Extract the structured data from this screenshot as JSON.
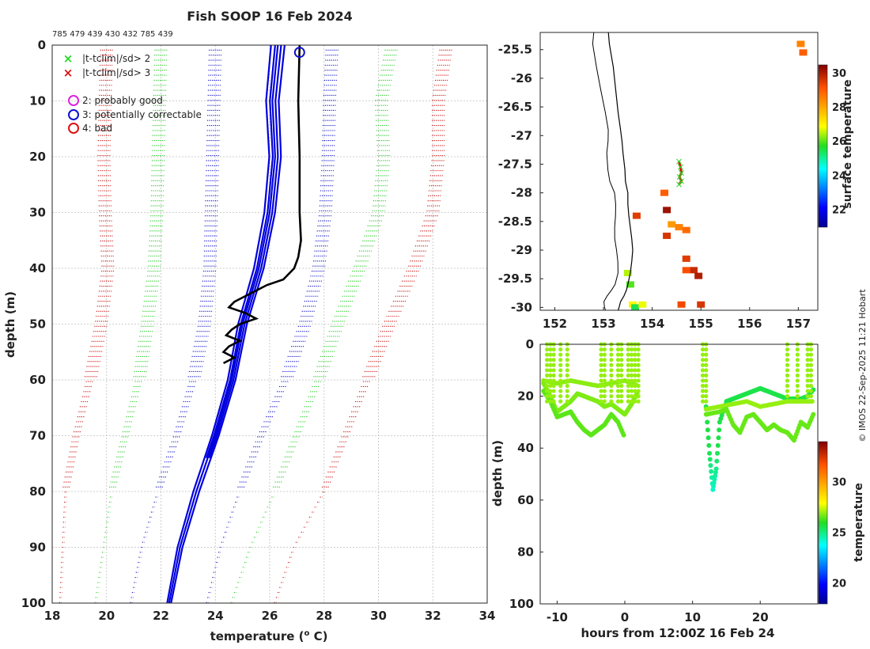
{
  "title": "Fish SOOP 16 Feb 2024",
  "top_counts": "785 479 439 430 432 785 439",
  "copyright": "© IMOS 22-Sep-2025 11:21 Hobart",
  "chart_data": [
    {
      "id": "profile",
      "type": "line",
      "xlabel_main": "temperature (",
      "xlabel_sup": "o",
      "xlabel_end": " C)",
      "ylabel": "depth (m)",
      "xlim": [
        18,
        34
      ],
      "ylim": [
        0,
        100
      ],
      "xticks": [
        "18",
        "20",
        "22",
        "24",
        "26",
        "28",
        "30",
        "32",
        "34"
      ],
      "yticks": [
        "0",
        "10",
        "20",
        "30",
        "40",
        "50",
        "60",
        "70",
        "80",
        "90",
        "100"
      ],
      "legend": {
        "x2": "|t-tclim|/sd> 2",
        "x3": "|t-tclim|/sd> 3",
        "q2": "2: probably good",
        "q3": "3: potentially correctable",
        "q4": "4: bad"
      },
      "legend_colors": {
        "x2": "#22dd22",
        "x3": "#dd1111",
        "q2": "#dd22dd",
        "q3": "#1111cc",
        "q4": "#dd1111"
      },
      "climatology_series": [
        {
          "name": "-3sd",
          "color": "#cc1111",
          "depth": [
            0,
            10,
            20,
            30,
            40,
            50,
            60,
            70,
            80,
            90,
            100
          ],
          "temp": [
            20.0,
            19.95,
            19.9,
            19.95,
            20.05,
            19.8,
            19.4,
            18.9,
            18.5,
            18.4,
            18.3
          ]
        },
        {
          "name": "-2sd",
          "color": "#22cc22",
          "depth": [
            0,
            10,
            20,
            30,
            40,
            50,
            60,
            70,
            80,
            90,
            100
          ],
          "temp": [
            22.0,
            21.95,
            21.9,
            21.85,
            21.75,
            21.5,
            21.2,
            20.7,
            20.2,
            19.9,
            19.6
          ]
        },
        {
          "name": "-1sd",
          "color": "#1111cc",
          "depth": [
            0,
            10,
            20,
            30,
            40,
            50,
            60,
            70,
            80,
            90,
            100
          ],
          "temp": [
            24.0,
            23.95,
            23.9,
            23.85,
            23.8,
            23.6,
            23.2,
            22.6,
            21.9,
            21.3,
            20.9
          ]
        },
        {
          "name": "+1sd",
          "color": "#1111cc",
          "depth": [
            0,
            10,
            20,
            30,
            40,
            50,
            60,
            70,
            80,
            90,
            100
          ],
          "temp": [
            28.3,
            28.2,
            28.15,
            28.05,
            27.8,
            27.3,
            26.6,
            25.7,
            24.9,
            24.2,
            23.7
          ]
        },
        {
          "name": "+2sd",
          "color": "#22cc22",
          "depth": [
            0,
            10,
            20,
            30,
            40,
            50,
            60,
            70,
            80,
            90,
            100
          ],
          "temp": [
            30.5,
            30.1,
            30.2,
            30.0,
            29.3,
            28.5,
            27.8,
            27.0,
            26.2,
            25.3,
            24.6
          ]
        },
        {
          "name": "+3sd",
          "color": "#cc1111",
          "depth": [
            0,
            10,
            20,
            30,
            40,
            50,
            60,
            70,
            80,
            90,
            100
          ],
          "temp": [
            32.5,
            32.2,
            32.2,
            32.0,
            31.3,
            30.4,
            29.6,
            28.8,
            28.0,
            26.9,
            26.2
          ]
        }
      ],
      "mean_profiles": {
        "color": "#0000dd",
        "depth": [
          0,
          10,
          20,
          30,
          40,
          50,
          60,
          70,
          80,
          90,
          100
        ],
        "temp": [
          26.3,
          26.1,
          26.2,
          26.0,
          25.6,
          25.0,
          24.6,
          24.0,
          23.3,
          22.7,
          22.3
        ]
      },
      "observed_profile": {
        "color": "#000000",
        "depth": [
          0,
          10,
          20,
          30,
          35,
          38,
          40,
          42,
          43,
          44,
          45,
          46,
          47,
          48,
          49,
          50,
          51,
          52,
          53,
          54,
          55,
          56,
          57
        ],
        "temp": [
          27.1,
          27.05,
          27.1,
          27.1,
          27.15,
          27.05,
          26.9,
          26.5,
          25.9,
          25.5,
          25.1,
          24.7,
          24.5,
          25.1,
          25.5,
          24.9,
          24.6,
          24.4,
          24.9,
          24.5,
          24.3,
          24.7,
          24.3
        ]
      },
      "flag_marker": {
        "temp": 27.1,
        "depth": 1.3,
        "color": "#1111cc"
      }
    },
    {
      "id": "map",
      "type": "scatter",
      "xlim": [
        151.7,
        157.4
      ],
      "ylim": [
        -30.05,
        -25.2
      ],
      "xticks": [
        "152",
        "153",
        "154",
        "155",
        "156",
        "157"
      ],
      "yticks": [
        "-25.5",
        "-26",
        "-26.5",
        "-27",
        "-27.5",
        "-28",
        "-28.5",
        "-29",
        "-29.5",
        "-30"
      ],
      "colorbar_label": "surface temperature",
      "colorbar_ticks": [
        "22",
        "24",
        "26",
        "28",
        "30"
      ],
      "colorbar_range": [
        21,
        30.5
      ],
      "coast_lon": [
        153.1,
        153.12,
        153.2,
        153.25,
        153.3,
        153.35,
        153.38,
        153.4,
        153.44,
        153.45,
        153.5,
        153.5,
        153.52,
        153.55,
        153.58,
        153.6,
        153.58,
        153.55,
        153.5,
        153.47,
        153.42,
        153.35,
        153.32,
        153.3
      ],
      "coast_lat": [
        -25.2,
        -25.4,
        -25.8,
        -26.2,
        -26.6,
        -26.9,
        -27.1,
        -27.3,
        -27.6,
        -27.8,
        -28.0,
        -28.2,
        -28.4,
        -28.6,
        -28.8,
        -29.0,
        -29.2,
        -29.4,
        -29.6,
        -29.7,
        -29.8,
        -29.9,
        -30.0,
        -30.05
      ],
      "ship_track": {
        "lon": [
          154.55,
          154.58,
          154.6,
          154.56,
          154.6,
          154.55
        ],
        "lat": [
          -27.45,
          -27.55,
          -27.65,
          -27.72,
          -27.8,
          -27.85
        ],
        "color": "#dd1111",
        "marker_color": "#22dd22"
      },
      "sst_cells": [
        {
          "lon": 154.4,
          "lat": -28.55,
          "t": 28.2
        },
        {
          "lon": 154.55,
          "lat": -28.6,
          "t": 28.5
        },
        {
          "lon": 154.7,
          "lat": -28.65,
          "t": 28.8
        },
        {
          "lon": 154.7,
          "lat": -29.15,
          "t": 29.5
        },
        {
          "lon": 154.85,
          "lat": -29.35,
          "t": 29.8
        },
        {
          "lon": 154.7,
          "lat": -29.35,
          "t": 29.2
        },
        {
          "lon": 154.95,
          "lat": -29.45,
          "t": 30.0
        },
        {
          "lon": 155.0,
          "lat": -29.95,
          "t": 29.6
        },
        {
          "lon": 154.3,
          "lat": -28.3,
          "t": 30.2
        },
        {
          "lon": 154.25,
          "lat": -28.0,
          "t": 29.0
        },
        {
          "lon": 153.5,
          "lat": -29.4,
          "t": 26.5
        },
        {
          "lon": 153.55,
          "lat": -29.6,
          "t": 26.0
        },
        {
          "lon": 153.6,
          "lat": -29.95,
          "t": 27.0
        },
        {
          "lon": 153.65,
          "lat": -30.0,
          "t": 25.5
        },
        {
          "lon": 157.05,
          "lat": -25.4,
          "t": 28.5
        },
        {
          "lon": 157.1,
          "lat": -25.55,
          "t": 29.0
        },
        {
          "lon": 154.6,
          "lat": -29.95,
          "t": 29.3
        },
        {
          "lon": 153.8,
          "lat": -29.95,
          "t": 26.8
        },
        {
          "lon": 154.3,
          "lat": -28.75,
          "t": 29.6
        },
        {
          "lon": 153.68,
          "lat": -28.4,
          "t": 29.5
        }
      ]
    },
    {
      "id": "timeseries",
      "type": "scatter",
      "xlabel": "hours from 12:00Z 16 Feb 24",
      "ylabel": "depth (m)",
      "xlim": [
        -12.5,
        28.5
      ],
      "ylim": [
        0,
        100
      ],
      "xticks": [
        "-10",
        "0",
        "10",
        "20"
      ],
      "yticks": [
        "0",
        "20",
        "40",
        "60",
        "80",
        "100"
      ],
      "colorbar_label": "temperature",
      "colorbar_ticks": [
        "20",
        "25",
        "30"
      ],
      "colorbar_range": [
        18,
        34
      ],
      "tracks": [
        {
          "hours": [
            -12,
            -11,
            -10,
            -9,
            -8,
            -7,
            -6,
            -5,
            -4,
            -3,
            -2,
            -1,
            0,
            1,
            2
          ],
          "depth": [
            15,
            20,
            26,
            24,
            22,
            19,
            20,
            21,
            22,
            24,
            23,
            25,
            27,
            23,
            18
          ],
          "t": 26.8
        },
        {
          "hours": [
            -12,
            -11,
            -10,
            -9,
            -8,
            -7,
            -6,
            -5,
            -4,
            -3,
            -2,
            -1,
            0
          ],
          "depth": [
            18,
            22,
            28,
            27,
            26,
            30,
            33,
            35,
            33,
            31,
            27,
            30,
            36
          ],
          "t": 26.5
        },
        {
          "hours": [
            -12,
            -10,
            -8,
            -6,
            -4,
            -2,
            0,
            2
          ],
          "depth": [
            14,
            15,
            14,
            15,
            16,
            15,
            14,
            16
          ],
          "t": 26.9
        },
        {
          "hours": [
            12,
            12.5,
            13,
            13.5,
            14,
            15,
            16,
            17,
            18,
            19,
            20,
            21,
            22,
            23,
            24,
            25,
            26,
            27,
            28
          ],
          "depth": [
            24,
            42,
            56,
            48,
            30,
            22,
            21,
            20,
            19,
            18,
            17,
            18,
            19,
            20,
            21,
            21,
            21,
            20,
            17
          ],
          "t": 25.6
        },
        {
          "hours": [
            12,
            14,
            16,
            18,
            20,
            22,
            24,
            26,
            28
          ],
          "depth": [
            25,
            24,
            23,
            22,
            24,
            23,
            22,
            22,
            22
          ],
          "t": 27.0
        },
        {
          "hours": [
            12,
            14,
            15,
            16,
            17,
            18,
            19,
            20,
            21,
            22,
            23,
            24,
            25,
            26,
            27,
            28
          ],
          "depth": [
            27,
            26,
            25,
            31,
            34,
            28,
            27,
            30,
            33,
            31,
            33,
            34,
            37,
            30,
            32,
            26
          ],
          "t": 26.6
        }
      ],
      "spikes_hours": [
        -11.5,
        -11,
        -10.5,
        -9.5,
        -8.5,
        -3.5,
        -3,
        -2,
        -1,
        -0.5,
        0.5,
        1,
        1.5,
        2,
        11.5,
        12,
        24,
        25.5,
        27,
        27.5
      ]
    }
  ]
}
